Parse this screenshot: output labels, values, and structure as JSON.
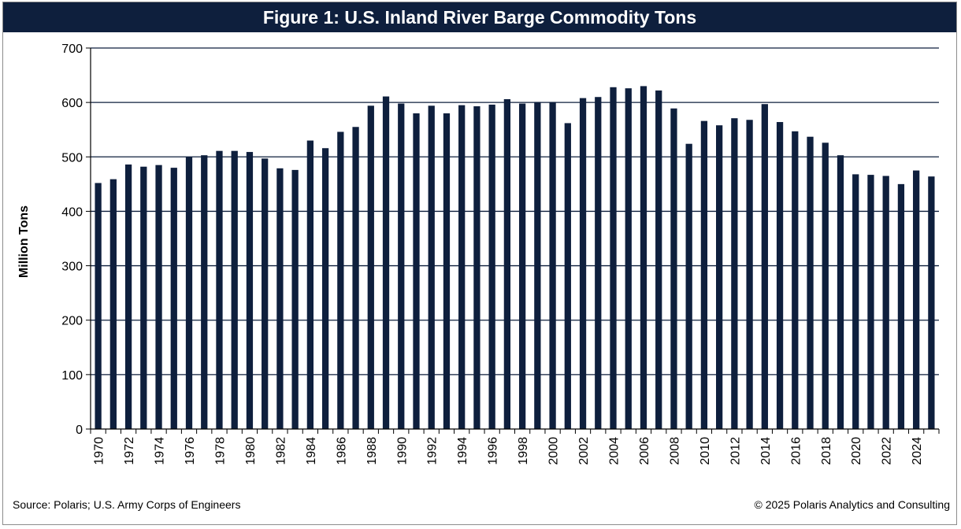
{
  "chart_data": {
    "type": "bar",
    "title": "Figure 1: U.S. Inland River Barge Commodity Tons",
    "xlabel": "",
    "ylabel": "Million  Tons",
    "ylim": [
      0,
      700
    ],
    "yticks": [
      0,
      100,
      200,
      300,
      400,
      500,
      600,
      700
    ],
    "grid": "horizontal",
    "categories": [
      "1970",
      "1971",
      "1972",
      "1973",
      "1974",
      "1975",
      "1976",
      "1977",
      "1978",
      "1979",
      "1980",
      "1981",
      "1982",
      "1983",
      "1984",
      "1985",
      "1986",
      "1987",
      "1988",
      "1989",
      "1990",
      "1991",
      "1992",
      "1993",
      "1994",
      "1995",
      "1996",
      "1997",
      "1998",
      "1999",
      "2000",
      "2001",
      "2002",
      "2003",
      "2004",
      "2005",
      "2006",
      "2007",
      "2008",
      "2009",
      "2010",
      "2011",
      "2012",
      "2013",
      "2014",
      "2015",
      "2016",
      "2017",
      "2018",
      "2019",
      "2020",
      "2021",
      "2022",
      "2023",
      "2024",
      "2025"
    ],
    "xtick_labels": [
      "1970",
      "1972",
      "1974",
      "1976",
      "1978",
      "1980",
      "1982",
      "1984",
      "1986",
      "1988",
      "1990",
      "1992",
      "1994",
      "1996",
      "1998",
      "2000",
      "2002",
      "2004",
      "2006",
      "2008",
      "2010",
      "2012",
      "2014",
      "2016",
      "2018",
      "2020",
      "2022",
      "2024"
    ],
    "values": [
      452,
      459,
      486,
      482,
      485,
      480,
      500,
      503,
      511,
      511,
      509,
      497,
      479,
      476,
      530,
      516,
      546,
      555,
      594,
      611,
      598,
      580,
      594,
      580,
      595,
      593,
      596,
      606,
      598,
      601,
      601,
      562,
      608,
      610,
      628,
      626,
      630,
      622,
      589,
      524,
      566,
      558,
      571,
      568,
      597,
      564,
      547,
      537,
      526,
      503,
      468,
      467,
      465,
      450,
      475,
      464
    ],
    "bar_color": "#0e1f3d"
  },
  "footer": {
    "source": "Source:  Polaris; U.S. Army Corps of Engineers",
    "copyright": "© 2025 Polaris Analytics and Consulting"
  }
}
